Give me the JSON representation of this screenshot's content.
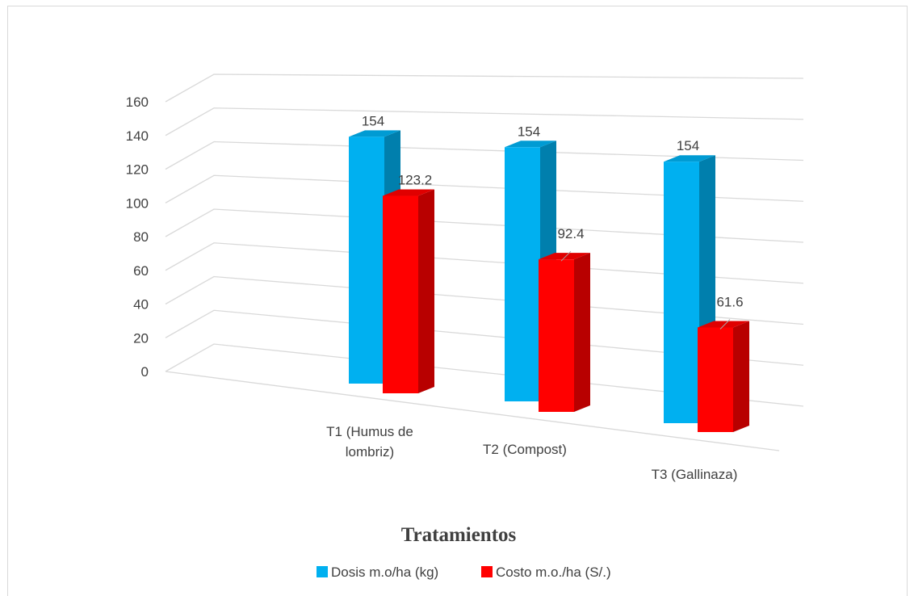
{
  "chart_data": {
    "type": "bar",
    "subtype": "3d-clustered-column",
    "title": "",
    "xlabel": "Tratamientos",
    "ylabel": "",
    "categories": [
      [
        "T1 (Humus de",
        "lombriz)"
      ],
      [
        "T2 (Compost)"
      ],
      [
        "T3 (Gallinaza)"
      ]
    ],
    "series": [
      {
        "name": "Dosis m.o/ha  (kg)",
        "values": [
          154,
          154,
          154
        ],
        "color": "#00b0f0"
      },
      {
        "name": "Costo m.o./ha  (S/.)",
        "values": [
          123.2,
          92.4,
          61.6
        ],
        "color": "#ff0000"
      }
    ],
    "data_labels": [
      "154",
      "154",
      "154",
      "123.2",
      "92.4",
      "61.6"
    ],
    "ylim": [
      0,
      160
    ],
    "yticks": [
      "0",
      "20",
      "40",
      "60",
      "80",
      "100",
      "120",
      "140",
      "160"
    ],
    "grid": true,
    "legend": "bottom"
  }
}
